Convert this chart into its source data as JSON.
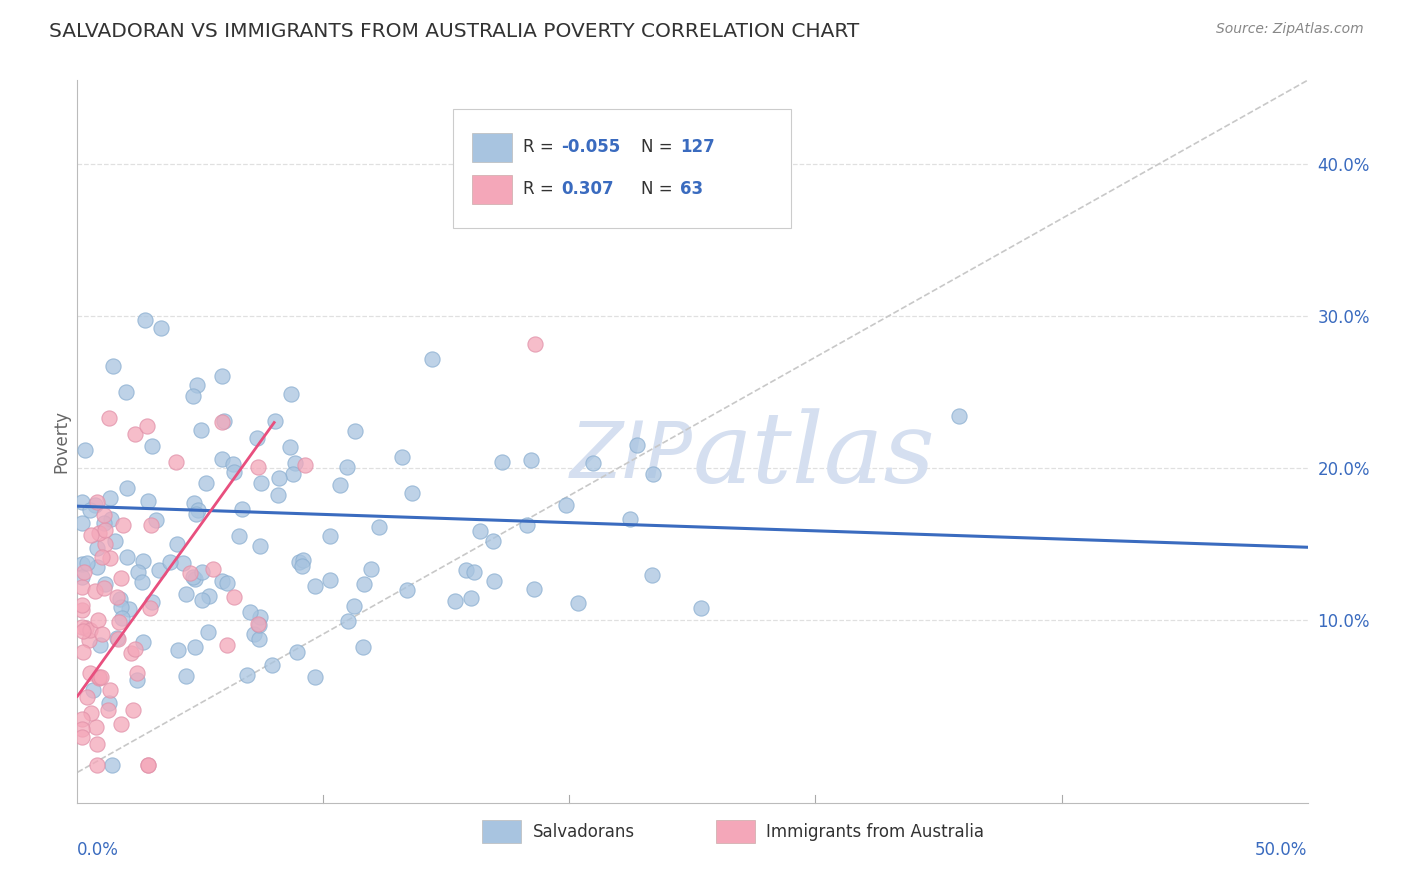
{
  "title": "SALVADORAN VS IMMIGRANTS FROM AUSTRALIA POVERTY CORRELATION CHART",
  "source_text": "Source: ZipAtlas.com",
  "ylabel": "Poverty",
  "right_yticks": [
    "10.0%",
    "20.0%",
    "30.0%",
    "40.0%"
  ],
  "right_ytick_vals": [
    0.1,
    0.2,
    0.3,
    0.4
  ],
  "xlim": [
    0.0,
    0.5
  ],
  "ylim": [
    -0.02,
    0.455
  ],
  "blue_R": -0.055,
  "blue_N": 127,
  "pink_R": 0.307,
  "pink_N": 63,
  "blue_color": "#a8c4e0",
  "pink_color": "#f4a7b9",
  "blue_line_color": "#3a6bbf",
  "pink_line_color": "#e84f7e",
  "dashed_line_color": "#c8c8c8",
  "watermark_color": "#d5dff0",
  "background_color": "#ffffff",
  "grid_color": "#e0e0e0",
  "blue_trend_start_y": 0.175,
  "blue_trend_end_y": 0.148,
  "pink_trend_start_y": 0.05,
  "pink_trend_end_y": 0.23,
  "pink_trend_end_x": 0.08
}
